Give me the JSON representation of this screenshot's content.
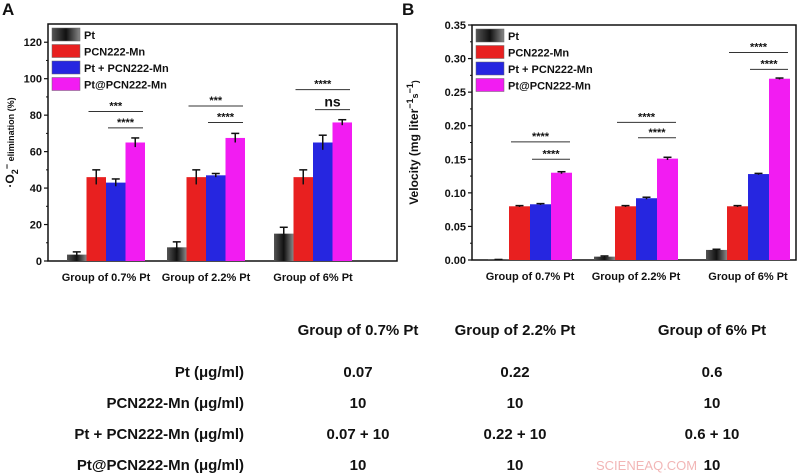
{
  "chart_data": [
    {
      "panel_label": "A",
      "type": "bar",
      "ylabel_prefix": "·O",
      "ylabel_sub": "2",
      "ylabel_sup": "−",
      "ylabel_rest": " elimination (%)",
      "ylim": [
        0,
        130
      ],
      "yticks": [
        0,
        20,
        40,
        60,
        80,
        100,
        120
      ],
      "categories": [
        "Group of 0.7% Pt",
        "Group of 2.2% Pt",
        "Group of 6% Pt"
      ],
      "legend_position": "top-left",
      "series": [
        {
          "name": "Pt",
          "color": "#555555",
          "values": [
            3.5,
            7.5,
            15
          ],
          "errors": [
            1.5,
            3,
            3.5
          ]
        },
        {
          "name": "PCN222-Mn",
          "color": "#e82020",
          "values": [
            46,
            46,
            46
          ],
          "errors": [
            4,
            4,
            4
          ]
        },
        {
          "name": "Pt + PCN222-Mn",
          "color": "#2626e0",
          "values": [
            43,
            47,
            65
          ],
          "errors": [
            2,
            1,
            4
          ]
        },
        {
          "name": "Pt@PCN222-Mn",
          "color": "#f21cf2",
          "values": [
            65,
            67.5,
            76
          ],
          "errors": [
            2.5,
            2.5,
            1.5
          ]
        }
      ],
      "significance": [
        {
          "group": 0,
          "from": 1,
          "to": 3,
          "y": 82,
          "label": "***"
        },
        {
          "group": 0,
          "from": 2,
          "to": 3,
          "y": 73,
          "label": "****"
        },
        {
          "group": 1,
          "from": 1,
          "to": 3,
          "y": 85,
          "label": "***"
        },
        {
          "group": 1,
          "from": 2,
          "to": 3,
          "y": 76,
          "label": "****"
        },
        {
          "group": 2,
          "from": 1,
          "to": 3,
          "y": 94,
          "label": "****"
        },
        {
          "group": 2,
          "from": 2,
          "to": 3,
          "y": 83,
          "label": "ns"
        }
      ]
    },
    {
      "panel_label": "B",
      "type": "bar",
      "ylabel_prefix": "Velocity (mg liter",
      "ylabel_sup": "−1",
      "ylabel_mid": "s",
      "ylabel_sup2": "−1",
      "ylabel_rest": ")",
      "ylim": [
        0,
        0.35
      ],
      "yticks": [
        "0.00",
        "0.05",
        "0.10",
        "0.15",
        "0.20",
        "0.25",
        "0.30",
        "0.35"
      ],
      "categories": [
        "Group of 0.7% Pt",
        "Group of 2.2% Pt",
        "Group of 6% Pt"
      ],
      "legend_position": "top-left",
      "series": [
        {
          "name": "Pt",
          "color": "#555555",
          "values": [
            0.0005,
            0.005,
            0.015
          ],
          "errors": [
            0.0003,
            0.001,
            0.001
          ]
        },
        {
          "name": "PCN222-Mn",
          "color": "#e82020",
          "values": [
            0.08,
            0.08,
            0.08
          ],
          "errors": [
            0.001,
            0.001,
            0.001
          ]
        },
        {
          "name": "Pt + PCN222-Mn",
          "color": "#2626e0",
          "values": [
            0.083,
            0.092,
            0.128
          ],
          "errors": [
            0.001,
            0.0015,
            0.001
          ]
        },
        {
          "name": "Pt@PCN222-Mn",
          "color": "#f21cf2",
          "values": [
            0.13,
            0.151,
            0.27
          ],
          "errors": [
            0.0015,
            0.002,
            0.001
          ]
        }
      ],
      "significance": [
        {
          "group": 0,
          "from": 1,
          "to": 3,
          "y": 0.176,
          "label": "****"
        },
        {
          "group": 0,
          "from": 2,
          "to": 3,
          "y": 0.15,
          "label": "****"
        },
        {
          "group": 1,
          "from": 1,
          "to": 3,
          "y": 0.205,
          "label": "****"
        },
        {
          "group": 1,
          "from": 2,
          "to": 3,
          "y": 0.182,
          "label": "****"
        },
        {
          "group": 2,
          "from": 1,
          "to": 3,
          "y": 0.309,
          "label": "****"
        },
        {
          "group": 2,
          "from": 2,
          "to": 3,
          "y": 0.284,
          "label": "****"
        }
      ]
    }
  ],
  "table": {
    "headers": [
      "Group of 0.7% Pt",
      "Group of 2.2% Pt",
      "Group of 6% Pt"
    ],
    "rows": [
      {
        "label": "Pt (μg/ml)",
        "values": [
          "0.07",
          "0.22",
          "0.6"
        ]
      },
      {
        "label": "PCN222-Mn (μg/ml)",
        "values": [
          "10",
          "10",
          "10"
        ]
      },
      {
        "label": "Pt + PCN222-Mn (μg/ml)",
        "values": [
          "0.07 + 10",
          "0.22 + 10",
          "0.6 + 10"
        ]
      },
      {
        "label": "Pt@PCN222-Mn (μg/ml)",
        "values": [
          "10",
          "10",
          "10"
        ]
      }
    ]
  },
  "watermark": "SCIENEAQ.COM"
}
